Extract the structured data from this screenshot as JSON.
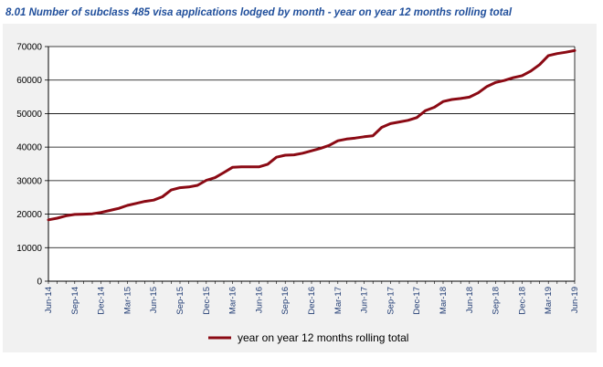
{
  "title": "8.01 Number of subclass 485 visa applications lodged by month - year on year 12 months rolling total",
  "colors": {
    "line": "#8b0a14",
    "plot_bg": "#ffffff",
    "outer_bg": "#f1f1f1",
    "title": "#1f4e9b"
  },
  "chart_data": {
    "type": "line",
    "title": "8.01 Number of subclass 485 visa applications lodged by month - year on year 12 months rolling total",
    "xlabel": "",
    "ylabel": "",
    "ylim": [
      0,
      70000
    ],
    "yticks": [
      0,
      10000,
      20000,
      30000,
      40000,
      50000,
      60000,
      70000
    ],
    "xticks": [
      "Jun-14",
      "Sep-14",
      "Dec-14",
      "Mar-15",
      "Jun-15",
      "Sep-15",
      "Dec-15",
      "Mar-16",
      "Jun-16",
      "Sep-16",
      "Dec-16",
      "Mar-17",
      "Jun-17",
      "Sep-17",
      "Dec-17",
      "Mar-18",
      "Jun-18",
      "Sep-18",
      "Dec-18",
      "Mar-19",
      "Jun-19"
    ],
    "grid": true,
    "legend": "bottom-center",
    "x": [
      "Jun-14",
      "Jul-14",
      "Aug-14",
      "Sep-14",
      "Oct-14",
      "Nov-14",
      "Dec-14",
      "Jan-15",
      "Feb-15",
      "Mar-15",
      "Apr-15",
      "May-15",
      "Jun-15",
      "Jul-15",
      "Aug-15",
      "Sep-15",
      "Oct-15",
      "Nov-15",
      "Dec-15",
      "Jan-16",
      "Feb-16",
      "Mar-16",
      "Apr-16",
      "May-16",
      "Jun-16",
      "Jul-16",
      "Aug-16",
      "Sep-16",
      "Oct-16",
      "Nov-16",
      "Dec-16",
      "Jan-17",
      "Feb-17",
      "Mar-17",
      "Apr-17",
      "May-17",
      "Jun-17",
      "Jul-17",
      "Aug-17",
      "Sep-17",
      "Oct-17",
      "Nov-17",
      "Dec-17",
      "Jan-18",
      "Feb-18",
      "Mar-18",
      "Apr-18",
      "May-18",
      "Jun-18",
      "Jul-18",
      "Aug-18",
      "Sep-18",
      "Oct-18",
      "Nov-18",
      "Dec-18",
      "Jan-19",
      "Feb-19",
      "Mar-19",
      "Apr-19",
      "May-19",
      "Jun-19"
    ],
    "series": [
      {
        "name": "year on year 12 months rolling total",
        "values": [
          18300,
          18800,
          19500,
          19900,
          20000,
          20100,
          20500,
          21100,
          21700,
          22600,
          23200,
          23800,
          24200,
          25200,
          27200,
          27900,
          28100,
          28600,
          30100,
          30900,
          32400,
          34000,
          34100,
          34100,
          34100,
          34900,
          37000,
          37600,
          37700,
          38200,
          38900,
          39600,
          40500,
          41900,
          42400,
          42700,
          43100,
          43400,
          45900,
          47000,
          47500,
          48000,
          48800,
          50900,
          51900,
          53600,
          54200,
          54500,
          54900,
          56200,
          58100,
          59300,
          59900,
          60700,
          61300,
          62700,
          64600,
          67300,
          67900,
          68300,
          68800
        ]
      }
    ]
  }
}
